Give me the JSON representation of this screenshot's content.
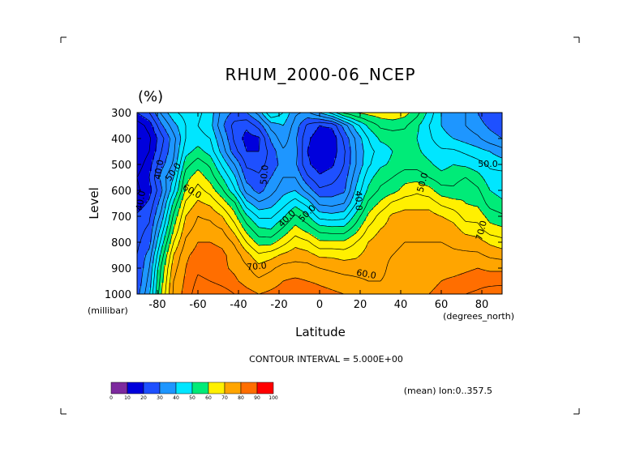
{
  "chart_data": {
    "type": "heatmap",
    "title": "RHUM_2000-06_NCEP",
    "units_label": "(%)",
    "xlabel": "Latitude",
    "ylabel": "Level",
    "x_unit_label": "(degrees_north)",
    "y_unit_label": "(millibar)",
    "x_ticks": [
      "-80",
      "-60",
      "-40",
      "-20",
      "0",
      "20",
      "40",
      "60",
      "80"
    ],
    "y_ticks": [
      "300",
      "400",
      "500",
      "600",
      "700",
      "800",
      "900",
      "1000"
    ],
    "xlim": [
      -90,
      90
    ],
    "ylim": [
      1000,
      300
    ],
    "contour_interval_text": "CONTOUR INTERVAL = 5.000E+00",
    "mean_text": "(mean) lon:0..357.5",
    "colorbar_labels": [
      "0",
      "10",
      "20",
      "30",
      "40",
      "50",
      "60",
      "70",
      "80",
      "90",
      "100"
    ],
    "colorbar_colors": [
      "#7d2a9e",
      "#0000dc",
      "#1e50ff",
      "#1e96ff",
      "#00e6ff",
      "#00eb78",
      "#fff000",
      "#ffa500",
      "#ff6e00",
      "#ff0000"
    ],
    "contour_labels": [
      {
        "text": "40.0",
        "lat": -79,
        "lev": 520,
        "angle": -80
      },
      {
        "text": "50.0",
        "lat": -72,
        "lev": 530,
        "angle": -55
      },
      {
        "text": "40.0",
        "lat": -88,
        "lev": 640,
        "angle": -80
      },
      {
        "text": "60.0",
        "lat": -63,
        "lev": 605,
        "angle": 30
      },
      {
        "text": "50.0",
        "lat": -27,
        "lev": 540,
        "angle": -85
      },
      {
        "text": "40.0",
        "lat": -16,
        "lev": 710,
        "angle": -45
      },
      {
        "text": "50.0",
        "lat": -6,
        "lev": 690,
        "angle": -45
      },
      {
        "text": "70.0",
        "lat": -31,
        "lev": 895,
        "angle": -5
      },
      {
        "text": "40.0",
        "lat": 19,
        "lev": 640,
        "angle": 88
      },
      {
        "text": "50.0",
        "lat": 51,
        "lev": 570,
        "angle": -75
      },
      {
        "text": "60.0",
        "lat": 23,
        "lev": 925,
        "angle": 10
      },
      {
        "text": "50.0",
        "lat": 83,
        "lev": 500,
        "angle": 0
      },
      {
        "text": "70.0",
        "lat": 80,
        "lev": 755,
        "angle": -75
      }
    ],
    "values": [
      [
        20,
        25,
        36,
        44,
        47,
        46,
        43,
        33,
        29,
        30,
        37,
        50,
        45,
        36,
        34,
        40,
        47,
        56,
        60,
        62,
        63,
        64,
        62,
        57,
        48,
        40,
        38,
        35,
        30,
        26,
        25
      ],
      [
        12,
        17,
        29,
        38,
        45,
        45,
        42,
        31,
        23,
        21,
        27,
        37,
        40,
        33,
        24,
        20,
        21,
        32,
        43,
        51,
        56,
        57,
        56,
        51,
        45,
        40,
        37,
        35,
        32,
        29,
        27
      ],
      [
        10,
        14,
        23,
        33,
        45,
        47,
        45,
        35,
        24,
        18,
        19,
        31,
        38,
        31,
        21,
        17,
        16,
        26,
        36,
        45,
        51,
        52,
        52,
        50,
        46,
        42,
        40,
        38,
        36,
        32,
        30
      ],
      [
        10,
        15,
        25,
        34,
        48,
        52,
        48,
        38,
        27,
        20,
        20,
        27,
        34,
        32,
        20,
        17,
        17,
        24,
        35,
        43,
        47,
        50,
        51,
        51,
        48,
        46,
        46,
        44,
        42,
        40,
        37
      ],
      [
        12,
        18,
        28,
        36,
        53,
        58,
        54,
        44,
        35,
        24,
        23,
        27,
        32,
        31,
        21,
        17,
        19,
        25,
        35,
        44,
        49,
        51,
        53,
        53,
        51,
        48,
        50,
        49,
        47,
        44,
        43
      ],
      [
        15,
        20,
        32,
        40,
        58,
        63,
        58,
        50,
        41,
        28,
        26,
        30,
        35,
        35,
        26,
        21,
        23,
        27,
        38,
        48,
        53,
        55,
        58,
        58,
        55,
        52,
        53,
        55,
        52,
        47,
        47
      ],
      [
        14,
        18,
        29,
        44,
        61,
        67,
        63,
        56,
        46,
        33,
        28,
        33,
        38,
        40,
        33,
        26,
        27,
        29,
        41,
        51,
        56,
        58,
        62,
        64,
        62,
        57,
        56,
        59,
        56,
        50,
        48
      ],
      [
        17,
        21,
        33,
        51,
        66,
        71,
        69,
        63,
        56,
        42,
        36,
        38,
        43,
        48,
        43,
        34,
        33,
        35,
        45,
        56,
        61,
        66,
        68,
        68,
        68,
        64,
        62,
        60,
        59,
        53,
        51
      ],
      [
        21,
        24,
        37,
        56,
        70,
        75,
        74,
        70,
        62,
        51,
        44,
        44,
        49,
        56,
        51,
        43,
        42,
        43,
        52,
        61,
        67,
        71,
        72,
        72,
        72,
        70,
        68,
        63,
        63,
        58,
        56
      ],
      [
        23,
        26,
        42,
        60,
        73,
        77,
        77,
        75,
        68,
        58,
        51,
        50,
        56,
        62,
        58,
        53,
        52,
        52,
        58,
        66,
        70,
        72,
        74,
        73,
        74,
        74,
        72,
        68,
        67,
        62,
        61
      ],
      [
        24,
        28,
        47,
        65,
        76,
        80,
        80,
        79,
        74,
        65,
        58,
        58,
        63,
        68,
        66,
        61,
        61,
        61,
        65,
        70,
        73,
        74,
        75,
        75,
        75,
        75,
        74,
        73,
        72,
        69,
        67
      ],
      [
        25,
        32,
        52,
        70,
        79,
        82,
        82,
        81,
        78,
        72,
        66,
        68,
        71,
        73,
        72,
        69,
        69,
        68,
        69,
        72,
        74,
        75,
        76,
        76,
        77,
        77,
        76,
        76,
        76,
        74,
        73
      ],
      [
        25,
        35,
        56,
        73,
        80,
        84,
        83,
        81,
        79,
        76,
        72,
        74,
        77,
        77,
        77,
        75,
        74,
        73,
        73,
        73,
        74,
        76,
        76,
        77,
        78,
        78,
        78,
        79,
        80,
        79,
        79
      ],
      [
        26,
        37,
        58,
        75,
        81,
        86,
        85,
        83,
        81,
        78,
        76,
        78,
        80,
        81,
        80,
        79,
        78,
        77,
        76,
        75,
        75,
        76,
        77,
        78,
        79,
        80,
        81,
        82,
        83,
        83,
        83
      ],
      [
        28,
        39,
        60,
        76,
        82,
        88,
        90,
        88,
        85,
        82,
        80,
        81,
        82,
        84,
        84,
        82,
        81,
        80,
        79,
        77,
        76,
        77,
        78,
        79,
        80,
        81,
        83,
        85,
        86,
        88,
        89
      ]
    ]
  }
}
